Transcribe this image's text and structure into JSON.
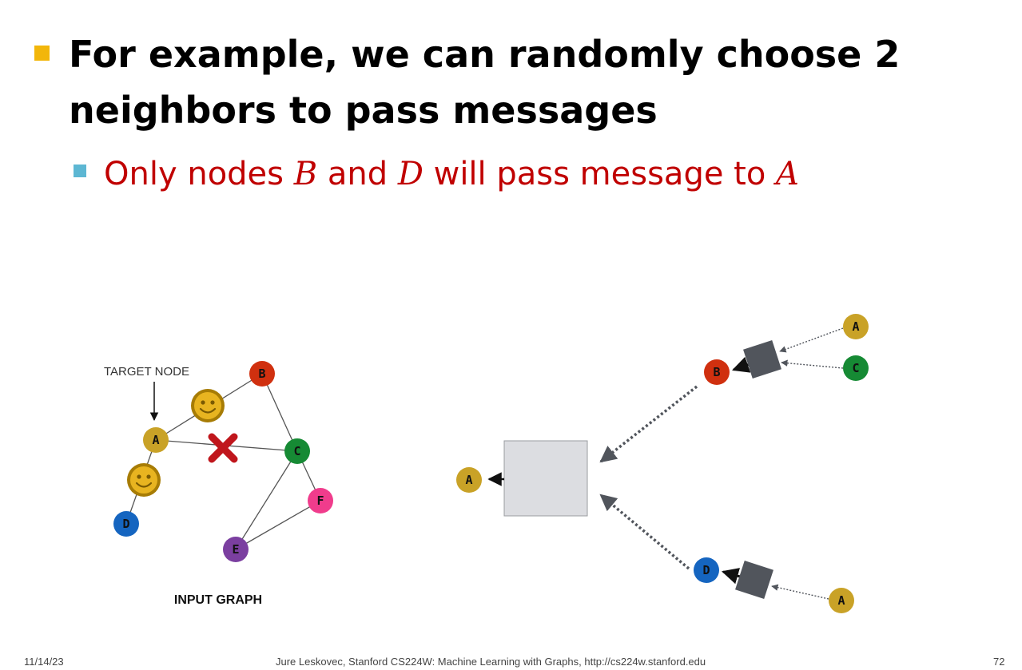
{
  "slide": {
    "title": "For example, we can randomly choose 2 neighbors to pass messages",
    "subtitle": {
      "prefix": "Only nodes ",
      "node1": "B",
      "mid": " and ",
      "node2": "D",
      "suffix": " will pass message to ",
      "target": "A"
    }
  },
  "input_graph": {
    "caption": "INPUT GRAPH",
    "target_label": "TARGET NODE",
    "nodes": [
      {
        "id": "A",
        "color": "#c9a227"
      },
      {
        "id": "B",
        "color": "#d0300f"
      },
      {
        "id": "C",
        "color": "#168a34"
      },
      {
        "id": "D",
        "color": "#1565c0"
      },
      {
        "id": "E",
        "color": "#7b3fa0"
      },
      {
        "id": "F",
        "color": "#f03c8c"
      }
    ],
    "edges": [
      [
        "A",
        "B"
      ],
      [
        "A",
        "C"
      ],
      [
        "A",
        "D"
      ],
      [
        "B",
        "C"
      ],
      [
        "C",
        "E"
      ],
      [
        "C",
        "F"
      ],
      [
        "E",
        "F"
      ]
    ],
    "sampled_edges": [
      [
        "A",
        "B"
      ],
      [
        "A",
        "D"
      ]
    ],
    "dropped_edges": [
      [
        "A",
        "C"
      ]
    ],
    "smiley_color": "#d4a00e",
    "cross_color": "#c0161c"
  },
  "computation_graph": {
    "root": "A",
    "level1": [
      "B",
      "D"
    ],
    "b_neighbors": [
      "A",
      "C"
    ],
    "d_neighbors": [
      "A"
    ],
    "box_color": "#dcdde1",
    "agg_color": "#51555c"
  },
  "footer": {
    "date": "11/14/23",
    "credit": "Jure Leskovec, Stanford CS224W: Machine Learning with Graphs, http://cs224w.stanford.edu",
    "page": "72"
  }
}
